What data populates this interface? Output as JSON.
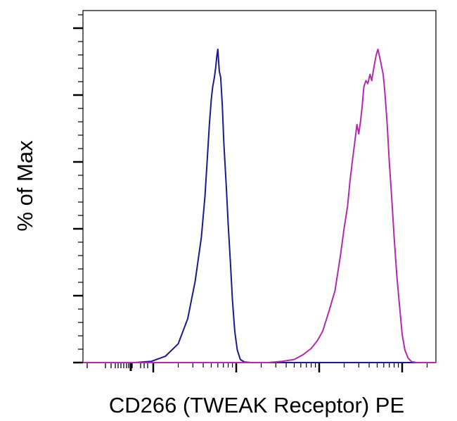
{
  "chart_data": {
    "type": "line",
    "title": "",
    "xlabel": "CD266 (TWEAK Receptor) PE",
    "ylabel": "% of Max",
    "x_scale": "log",
    "tick_labels_shown": false,
    "ylim": [
      0,
      100
    ],
    "grid": false,
    "legend": "none",
    "series": [
      {
        "color": "#1a1a8c",
        "points": [
          [
            10,
            0
          ],
          [
            60,
            0
          ],
          [
            95,
            0.4
          ],
          [
            140,
            2
          ],
          [
            200,
            6
          ],
          [
            260,
            14
          ],
          [
            320,
            26
          ],
          [
            380,
            40
          ],
          [
            420,
            53
          ],
          [
            450,
            66
          ],
          [
            475,
            76
          ],
          [
            500,
            84
          ],
          [
            520,
            88
          ],
          [
            545,
            91
          ],
          [
            565,
            94
          ],
          [
            585,
            98
          ],
          [
            600,
            100
          ],
          [
            625,
            93
          ],
          [
            650,
            91
          ],
          [
            680,
            82
          ],
          [
            710,
            70
          ],
          [
            760,
            56
          ],
          [
            800,
            44
          ],
          [
            850,
            32
          ],
          [
            900,
            20
          ],
          [
            960,
            10
          ],
          [
            1030,
            4
          ],
          [
            1120,
            1
          ],
          [
            1250,
            0.2
          ],
          [
            1500,
            0
          ],
          [
            100000,
            0
          ],
          [
            400000,
            0
          ]
        ]
      },
      {
        "color": "#b22ab2",
        "points": [
          [
            10,
            0
          ],
          [
            1500,
            0
          ],
          [
            2400,
            0
          ],
          [
            3600,
            0.4
          ],
          [
            5000,
            1
          ],
          [
            6300,
            2.4
          ],
          [
            8000,
            4.5
          ],
          [
            9500,
            7
          ],
          [
            11000,
            10
          ],
          [
            13000,
            16
          ],
          [
            15500,
            23
          ],
          [
            18000,
            34
          ],
          [
            20000,
            43
          ],
          [
            22000,
            50
          ],
          [
            23500,
            58
          ],
          [
            25000,
            64
          ],
          [
            27000,
            71
          ],
          [
            28500,
            76
          ],
          [
            30000,
            73
          ],
          [
            31500,
            77
          ],
          [
            33000,
            82
          ],
          [
            34500,
            88
          ],
          [
            36500,
            90
          ],
          [
            38500,
            89
          ],
          [
            41000,
            92
          ],
          [
            43000,
            90
          ],
          [
            45500,
            94
          ],
          [
            48500,
            98
          ],
          [
            51000,
            100
          ],
          [
            55000,
            96
          ],
          [
            59000,
            92
          ],
          [
            62000,
            86
          ],
          [
            66000,
            76
          ],
          [
            70000,
            64
          ],
          [
            75000,
            52
          ],
          [
            80000,
            40
          ],
          [
            86000,
            28
          ],
          [
            93000,
            18
          ],
          [
            100000,
            9
          ],
          [
            108000,
            4
          ],
          [
            118000,
            1.4
          ],
          [
            130000,
            0.3
          ],
          [
            150000,
            0
          ],
          [
            400000,
            0
          ]
        ]
      }
    ]
  }
}
